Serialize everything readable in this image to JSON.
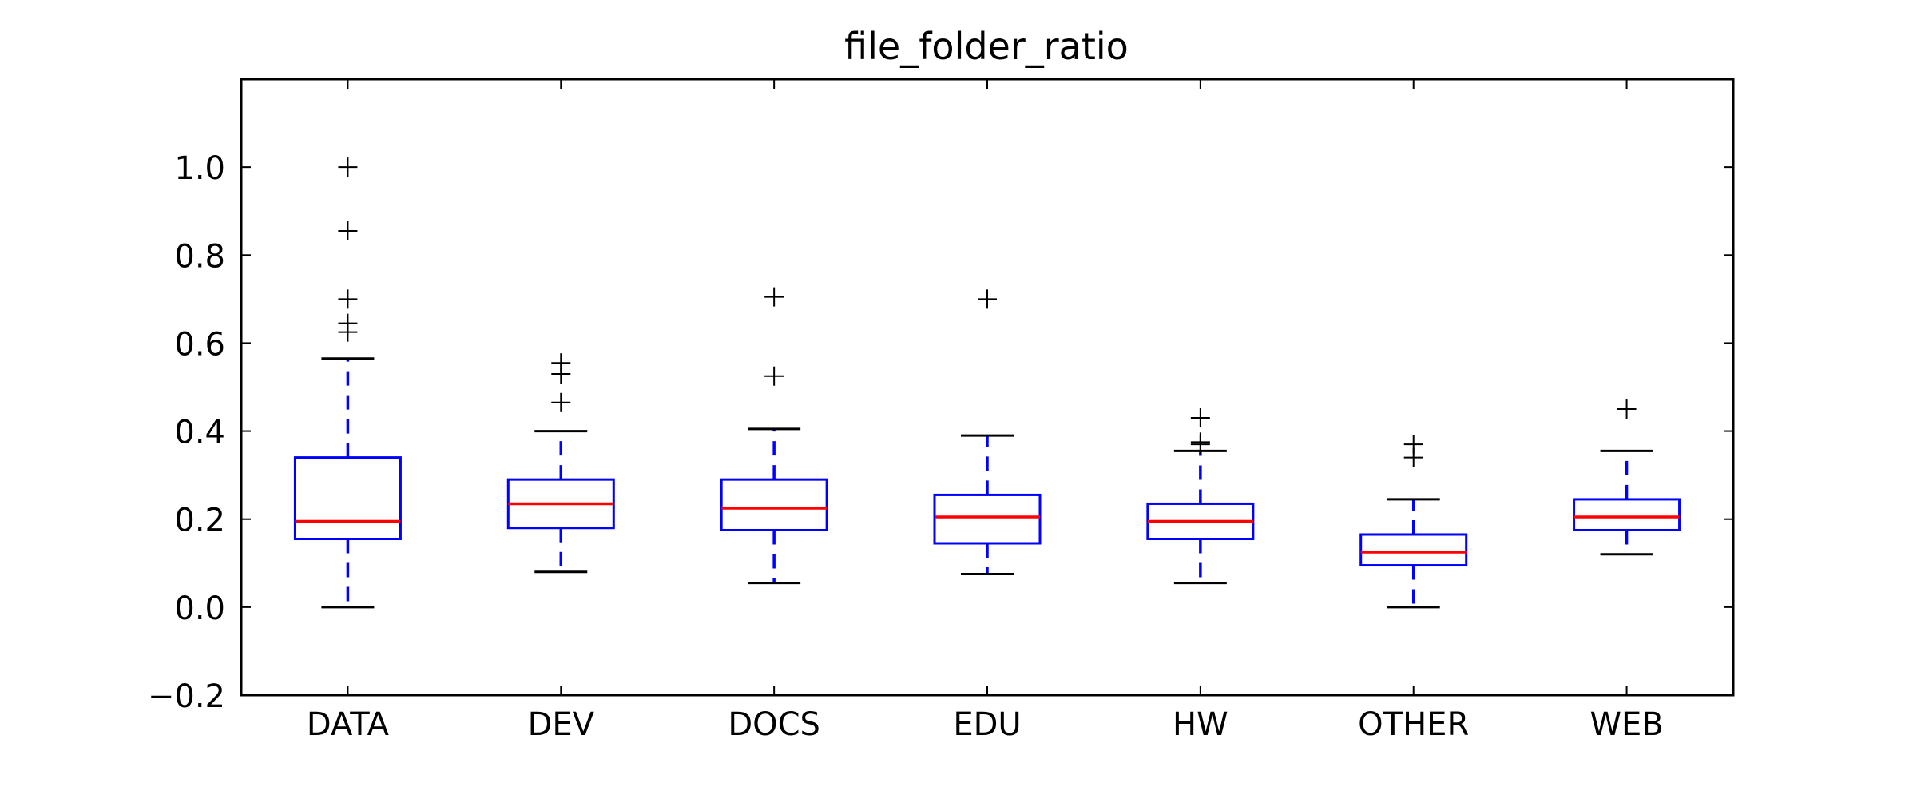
{
  "chart_data": {
    "type": "box",
    "title": "file_folder_ratio",
    "xlabel": "",
    "ylabel": "",
    "ylim": [
      -0.2,
      1.2
    ],
    "yticks": [
      -0.2,
      0.0,
      0.2,
      0.4,
      0.6,
      0.8,
      1.0
    ],
    "ytick_labels": [
      "−0.2",
      "0.0",
      "0.2",
      "0.4",
      "0.6",
      "0.8",
      "1.0"
    ],
    "categories": [
      "DATA",
      "DEV",
      "DOCS",
      "EDU",
      "HW",
      "OTHER",
      "WEB"
    ],
    "boxes": [
      {
        "whisker_low": 0.0,
        "q1": 0.155,
        "median": 0.195,
        "q3": 0.34,
        "whisker_high": 0.565,
        "fliers": [
          0.625,
          0.645,
          0.7,
          0.855,
          1.0
        ]
      },
      {
        "whisker_low": 0.08,
        "q1": 0.18,
        "median": 0.235,
        "q3": 0.29,
        "whisker_high": 0.4,
        "fliers": [
          0.465,
          0.53,
          0.555
        ]
      },
      {
        "whisker_low": 0.055,
        "q1": 0.175,
        "median": 0.225,
        "q3": 0.29,
        "whisker_high": 0.405,
        "fliers": [
          0.525,
          0.705
        ]
      },
      {
        "whisker_low": 0.075,
        "q1": 0.145,
        "median": 0.205,
        "q3": 0.255,
        "whisker_high": 0.39,
        "fliers": [
          0.7
        ]
      },
      {
        "whisker_low": 0.055,
        "q1": 0.155,
        "median": 0.195,
        "q3": 0.235,
        "whisker_high": 0.355,
        "fliers": [
          0.37,
          0.375,
          0.43
        ]
      },
      {
        "whisker_low": 0.0,
        "q1": 0.095,
        "median": 0.125,
        "q3": 0.165,
        "whisker_high": 0.245,
        "fliers": [
          0.34,
          0.37
        ]
      },
      {
        "whisker_low": 0.12,
        "q1": 0.175,
        "median": 0.205,
        "q3": 0.245,
        "whisker_high": 0.355,
        "fliers": [
          0.45
        ]
      }
    ],
    "colors": {
      "box": "#0000ff",
      "median": "#ff0000",
      "whisker_cap": "#000000",
      "flier": "#000000"
    },
    "grid": false,
    "legend": "none"
  }
}
